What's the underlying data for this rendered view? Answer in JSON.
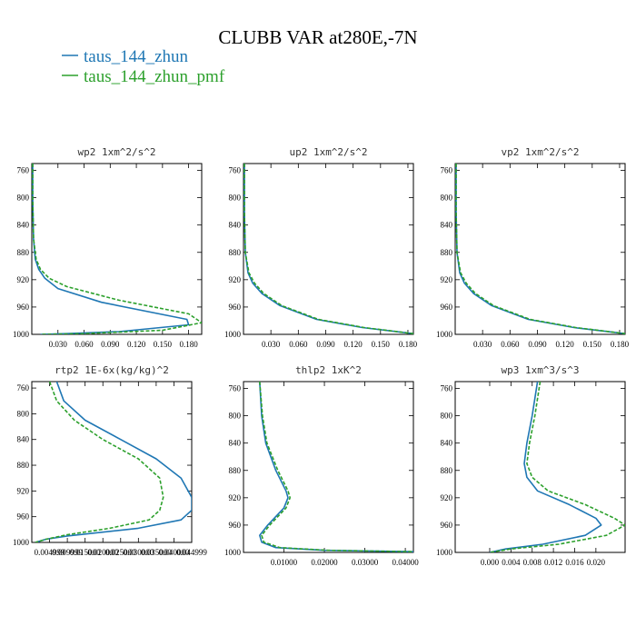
{
  "figure": {
    "title": "CLUBB VAR at280E,-7N",
    "legend": [
      {
        "label": "taus_144_zhun",
        "color": "#1f77b4",
        "dash": "solid"
      },
      {
        "label": "taus_144_zhun_pmf",
        "color": "#2ca02c",
        "dash": "dashed"
      }
    ]
  },
  "chart_data": [
    {
      "type": "line",
      "title": "wp2  1xm^2/s^2",
      "xlim": [
        0.0,
        0.195
      ],
      "ylim": [
        1000,
        750
      ],
      "xticks": [
        0.03,
        0.06,
        0.09,
        0.12,
        0.15,
        0.18
      ],
      "xtick_labels": [
        "0.030",
        "0.060",
        "0.090",
        "0.120",
        "0.150",
        "0.180"
      ],
      "yticks": [
        760,
        800,
        840,
        880,
        920,
        960,
        1000
      ],
      "series": [
        {
          "name": "taus_144_zhun",
          "points": [
            [
              0.001,
              750
            ],
            [
              0.001,
              800
            ],
            [
              0.002,
              860
            ],
            [
              0.004,
              890
            ],
            [
              0.008,
              905
            ],
            [
              0.015,
              918
            ],
            [
              0.03,
              933
            ],
            [
              0.08,
              953
            ],
            [
              0.178,
              978
            ],
            [
              0.18,
              986
            ],
            [
              0.1,
              996
            ],
            [
              0.04,
              999
            ],
            [
              0.01,
              1000
            ]
          ]
        },
        {
          "name": "taus_144_zhun_pmf",
          "points": [
            [
              0.001,
              750
            ],
            [
              0.001,
              800
            ],
            [
              0.002,
              860
            ],
            [
              0.005,
              890
            ],
            [
              0.01,
              905
            ],
            [
              0.02,
              918
            ],
            [
              0.04,
              930
            ],
            [
              0.1,
              950
            ],
            [
              0.18,
              970
            ],
            [
              0.195,
              983
            ],
            [
              0.15,
              994
            ],
            [
              0.06,
              999
            ],
            [
              0.01,
              1000
            ]
          ]
        }
      ]
    },
    {
      "type": "line",
      "title": "up2  1xm^2/s^2",
      "xlim": [
        0.0,
        0.186
      ],
      "ylim": [
        1000,
        750
      ],
      "xticks": [
        0.03,
        0.06,
        0.09,
        0.12,
        0.15,
        0.18
      ],
      "xtick_labels": [
        "0.030",
        "0.060",
        "0.090",
        "0.120",
        "0.150",
        "0.180"
      ],
      "yticks": [
        760,
        800,
        840,
        880,
        920,
        960,
        1000
      ],
      "series": [
        {
          "name": "taus_144_zhun",
          "points": [
            [
              0.001,
              750
            ],
            [
              0.001,
              820
            ],
            [
              0.002,
              880
            ],
            [
              0.005,
              910
            ],
            [
              0.01,
              925
            ],
            [
              0.02,
              940
            ],
            [
              0.04,
              958
            ],
            [
              0.08,
              978
            ],
            [
              0.13,
              990
            ],
            [
              0.186,
              999
            ]
          ]
        },
        {
          "name": "taus_144_zhun_pmf",
          "points": [
            [
              0.001,
              750
            ],
            [
              0.001,
              820
            ],
            [
              0.002,
              880
            ],
            [
              0.006,
              910
            ],
            [
              0.012,
              925
            ],
            [
              0.022,
              940
            ],
            [
              0.042,
              958
            ],
            [
              0.082,
              978
            ],
            [
              0.132,
              990
            ],
            [
              0.186,
              999
            ]
          ]
        }
      ]
    },
    {
      "type": "line",
      "title": "vp2  1xm^2/s^2",
      "xlim": [
        0.0,
        0.186
      ],
      "ylim": [
        1000,
        750
      ],
      "xticks": [
        0.03,
        0.06,
        0.09,
        0.12,
        0.15,
        0.18
      ],
      "xtick_labels": [
        "0.030",
        "0.060",
        "0.090",
        "0.120",
        "0.150",
        "0.180"
      ],
      "yticks": [
        760,
        800,
        840,
        880,
        920,
        960,
        1000
      ],
      "series": [
        {
          "name": "taus_144_zhun",
          "points": [
            [
              0.001,
              750
            ],
            [
              0.001,
              820
            ],
            [
              0.002,
              880
            ],
            [
              0.005,
              910
            ],
            [
              0.01,
              925
            ],
            [
              0.02,
              940
            ],
            [
              0.04,
              958
            ],
            [
              0.08,
              978
            ],
            [
              0.13,
              990
            ],
            [
              0.186,
              999
            ]
          ]
        },
        {
          "name": "taus_144_zhun_pmf",
          "points": [
            [
              0.001,
              750
            ],
            [
              0.001,
              820
            ],
            [
              0.002,
              880
            ],
            [
              0.006,
              910
            ],
            [
              0.012,
              925
            ],
            [
              0.022,
              940
            ],
            [
              0.042,
              958
            ],
            [
              0.082,
              978
            ],
            [
              0.132,
              990
            ],
            [
              0.186,
              999
            ]
          ]
        }
      ]
    },
    {
      "type": "line",
      "title": "rtp2  1E-6x(kg/kg)^2",
      "xlim": [
        0.0,
        0.045
      ],
      "ylim": [
        1000,
        750
      ],
      "xticks": [
        0.005,
        0.01,
        0.015,
        0.02,
        0.025,
        0.03,
        0.035,
        0.04,
        0.045
      ],
      "xtick_labels": [
        "0.004999",
        "0.009999",
        "0.015000",
        "0.020000",
        "0.025000",
        "0.030000",
        "0.035000",
        "0.040000",
        "0.044999"
      ],
      "yticks": [
        760,
        800,
        840,
        880,
        920,
        960,
        1000
      ],
      "series": [
        {
          "name": "taus_144_zhun",
          "points": [
            [
              0.007,
              750
            ],
            [
              0.009,
              780
            ],
            [
              0.015,
              810
            ],
            [
              0.025,
              840
            ],
            [
              0.035,
              870
            ],
            [
              0.042,
              900
            ],
            [
              0.045,
              930
            ],
            [
              0.045,
              950
            ],
            [
              0.042,
              965
            ],
            [
              0.03,
              978
            ],
            [
              0.01,
              990
            ],
            [
              0.004,
              995
            ],
            [
              0.001,
              1000
            ]
          ]
        },
        {
          "name": "taus_144_zhun_pmf",
          "points": [
            [
              0.005,
              750
            ],
            [
              0.007,
              780
            ],
            [
              0.012,
              810
            ],
            [
              0.02,
              840
            ],
            [
              0.03,
              870
            ],
            [
              0.036,
              900
            ],
            [
              0.037,
              930
            ],
            [
              0.036,
              950
            ],
            [
              0.033,
              965
            ],
            [
              0.022,
              978
            ],
            [
              0.01,
              988
            ],
            [
              0.004,
              995
            ],
            [
              0.001,
              1000
            ]
          ]
        }
      ]
    },
    {
      "type": "line",
      "title": "thlp2  1xK^2",
      "xlim": [
        0.0,
        0.042
      ],
      "ylim": [
        1000,
        750
      ],
      "xticks": [
        0.01,
        0.02,
        0.03,
        0.04
      ],
      "xtick_labels": [
        "0.01000",
        "0.02000",
        "0.03000",
        "0.04000"
      ],
      "yticks": [
        760,
        800,
        840,
        880,
        920,
        960,
        1000
      ],
      "series": [
        {
          "name": "taus_144_zhun",
          "points": [
            [
              0.004,
              750
            ],
            [
              0.0045,
              800
            ],
            [
              0.0055,
              840
            ],
            [
              0.008,
              880
            ],
            [
              0.0105,
              910
            ],
            [
              0.011,
              920
            ],
            [
              0.01,
              935
            ],
            [
              0.006,
              960
            ],
            [
              0.004,
              975
            ],
            [
              0.0045,
              985
            ],
            [
              0.008,
              993
            ],
            [
              0.02,
              997
            ],
            [
              0.042,
              999
            ]
          ]
        },
        {
          "name": "taus_144_zhun_pmf",
          "points": [
            [
              0.004,
              750
            ],
            [
              0.0047,
              800
            ],
            [
              0.0058,
              840
            ],
            [
              0.0085,
              880
            ],
            [
              0.011,
              910
            ],
            [
              0.0115,
              920
            ],
            [
              0.0105,
              935
            ],
            [
              0.0065,
              960
            ],
            [
              0.0045,
              975
            ],
            [
              0.005,
              985
            ],
            [
              0.009,
              993
            ],
            [
              0.021,
              997
            ],
            [
              0.042,
              999
            ]
          ]
        }
      ]
    },
    {
      "type": "line",
      "title": "wp3  1xm^3/s^3",
      "xlim": [
        -0.0065,
        0.0255
      ],
      "ylim": [
        1000,
        750
      ],
      "xticks": [
        0.0,
        0.004,
        0.008,
        0.012,
        0.016,
        0.02
      ],
      "xtick_labels": [
        "0.000",
        "0.004",
        "0.008",
        "0.012",
        "0.016",
        "0.020"
      ],
      "yticks": [
        760,
        800,
        840,
        880,
        920,
        960,
        1000
      ],
      "series": [
        {
          "name": "taus_144_zhun",
          "points": [
            [
              0.009,
              750
            ],
            [
              0.008,
              800
            ],
            [
              0.007,
              840
            ],
            [
              0.0065,
              870
            ],
            [
              0.007,
              890
            ],
            [
              0.009,
              910
            ],
            [
              0.015,
              930
            ],
            [
              0.02,
              950
            ],
            [
              0.021,
              960
            ],
            [
              0.018,
              975
            ],
            [
              0.01,
              988
            ],
            [
              0.003,
              995
            ],
            [
              0.0,
              1000
            ]
          ]
        },
        {
          "name": "taus_144_zhun_pmf",
          "points": [
            [
              0.0095,
              750
            ],
            [
              0.0085,
              800
            ],
            [
              0.0075,
              840
            ],
            [
              0.007,
              870
            ],
            [
              0.008,
              890
            ],
            [
              0.011,
              910
            ],
            [
              0.018,
              930
            ],
            [
              0.0235,
              950
            ],
            [
              0.0255,
              960
            ],
            [
              0.022,
              975
            ],
            [
              0.013,
              988
            ],
            [
              0.004,
              995
            ],
            [
              0.0,
              1000
            ]
          ]
        }
      ]
    }
  ]
}
